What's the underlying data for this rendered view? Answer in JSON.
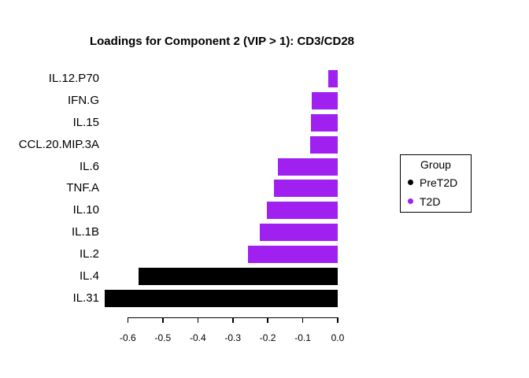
{
  "chart_data": {
    "type": "bar",
    "orientation": "horizontal",
    "title": "Loadings for Component 2 (VIP > 1): CD3/CD28",
    "categories": [
      "IL.12.P70",
      "IFN.G",
      "IL.15",
      "CCL.20.MIP.3A",
      "IL.6",
      "TNF.A",
      "IL.10",
      "IL.1B",
      "IL.2",
      "IL.4",
      "IL.31"
    ],
    "values": [
      -0.026,
      -0.075,
      -0.077,
      -0.079,
      -0.171,
      -0.182,
      -0.203,
      -0.224,
      -0.257,
      -0.57,
      -0.666
    ],
    "bar_groups": [
      "T2D",
      "T2D",
      "T2D",
      "T2D",
      "T2D",
      "T2D",
      "T2D",
      "T2D",
      "T2D",
      "PreT2D",
      "PreT2D"
    ],
    "group_colors": {
      "PreT2D": "#000000",
      "T2D": "#A020F0"
    },
    "xlabel": "",
    "ylabel": "",
    "xlim": [
      -0.7,
      0.0
    ],
    "x_ticks": [
      "-0.6",
      "-0.5",
      "-0.4",
      "-0.3",
      "-0.2",
      "-0.1",
      "0.0"
    ],
    "grid": false,
    "background": "#ffffff",
    "legend": {
      "title": "Group",
      "position": "right",
      "entries": [
        {
          "label": "PreT2D",
          "color": "#000000"
        },
        {
          "label": "T2D",
          "color": "#A020F0"
        }
      ]
    }
  }
}
